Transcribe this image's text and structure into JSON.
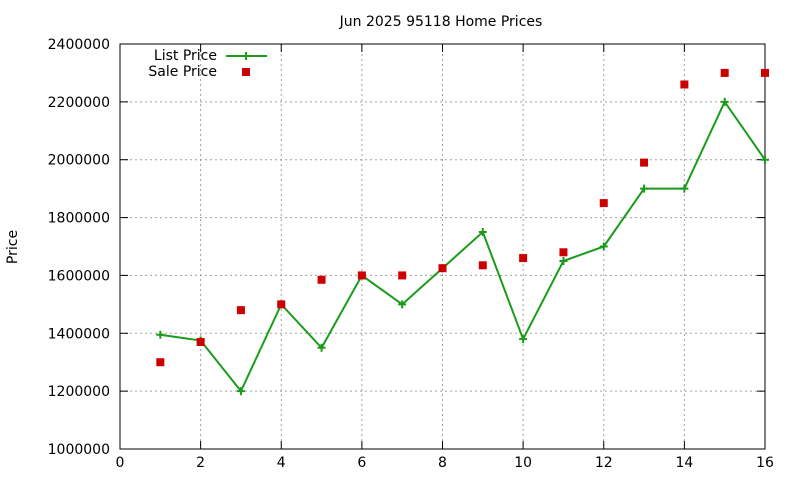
{
  "chart_data": {
    "type": "line",
    "title": "Jun 2025 95118 Home Prices",
    "xlabel": "",
    "ylabel": "Price",
    "xlim": [
      0,
      16
    ],
    "ylim": [
      1000000,
      2400000
    ],
    "x_ticks": [
      0,
      2,
      4,
      6,
      8,
      10,
      12,
      14,
      16
    ],
    "y_ticks": [
      1000000,
      1200000,
      1400000,
      1600000,
      1800000,
      2000000,
      2200000,
      2400000
    ],
    "grid": true,
    "legend_position": "top-left",
    "series": [
      {
        "name": "List Price",
        "style": "line with plus markers",
        "color": "#1a9c1a",
        "x": [
          1,
          2,
          3,
          4,
          5,
          6,
          7,
          8,
          9,
          10,
          11,
          12,
          13,
          14,
          15,
          16
        ],
        "y": [
          1395000,
          1375000,
          1200000,
          1500000,
          1350000,
          1600000,
          1500000,
          1625000,
          1750000,
          1380000,
          1650000,
          1700000,
          1900000,
          1900000,
          2200000,
          2000000
        ]
      },
      {
        "name": "Sale Price",
        "style": "square markers",
        "color": "#cc0000",
        "x": [
          1,
          2,
          3,
          4,
          5,
          6,
          7,
          8,
          9,
          10,
          11,
          12,
          13,
          14,
          15,
          16
        ],
        "y": [
          1300000,
          1370000,
          1480000,
          1500000,
          1585000,
          1600000,
          1600000,
          1625000,
          1635000,
          1660000,
          1680000,
          1850000,
          1990000,
          2260000,
          2300000,
          2300000
        ]
      }
    ]
  }
}
